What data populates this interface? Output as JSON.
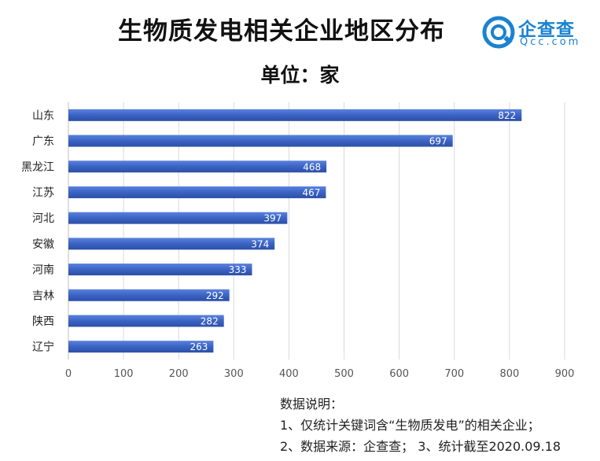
{
  "header": {
    "title": "生物质发电相关企业地区分布",
    "subtitle": "单位：家"
  },
  "logo": {
    "name": "企查查",
    "domain": "Qcc.com",
    "color": "#1a82d1"
  },
  "chart_data": {
    "type": "bar",
    "orientation": "horizontal",
    "title": "生物质发电相关企业地区分布",
    "unit": "单位：家",
    "categories": [
      "山东",
      "广东",
      "黑龙江",
      "江苏",
      "河北",
      "安徽",
      "河南",
      "吉林",
      "陕西",
      "辽宁"
    ],
    "values": [
      822,
      697,
      468,
      467,
      397,
      374,
      333,
      292,
      282,
      263
    ],
    "xlim": [
      0,
      900
    ],
    "xticks": [
      0,
      100,
      200,
      300,
      400,
      500,
      600,
      700,
      800,
      900
    ],
    "grid": true,
    "bar_color": "#3b63c4"
  },
  "notes": {
    "heading": "数据说明：",
    "line1": "1、仅统计关键词含“生物质发电”的相关企业；",
    "line2": "2、数据来源：企查查； 3、统计截至2020.09.18"
  }
}
